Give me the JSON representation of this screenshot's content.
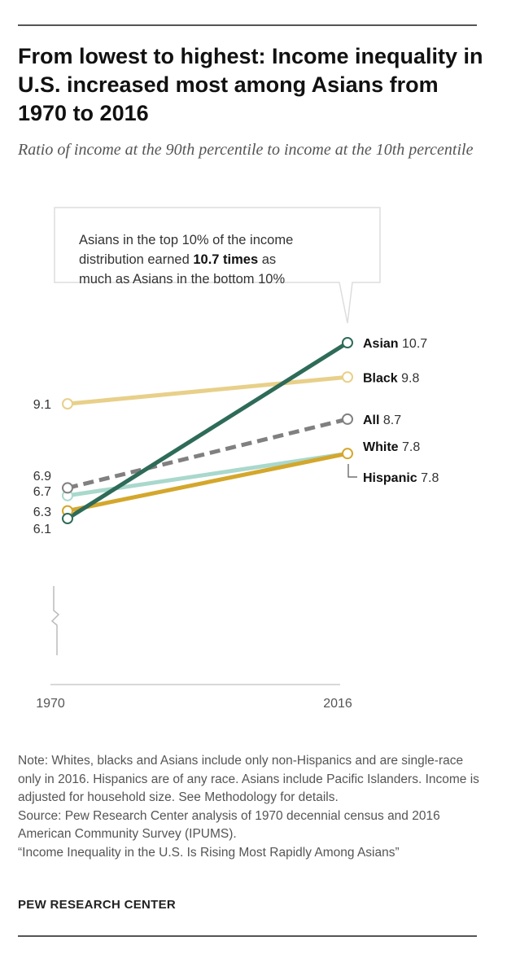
{
  "header": {
    "title": "From lowest to highest: Income inequality in U.S. increased most among Asians from 1970 to 2016",
    "subtitle": "Ratio of income at the 90th percentile to income at the 10th percentile"
  },
  "chart_data": {
    "type": "line",
    "x": [
      "1970",
      "2016"
    ],
    "ylabel": "Ratio of income at the 90th percentile to income at the 10th percentile",
    "xlabel": "",
    "ylim": [
      6.1,
      10.7
    ],
    "axis_break": true,
    "series": [
      {
        "name": "Black",
        "values": [
          9.1,
          9.8
        ],
        "color": "#e8d08a",
        "style": "solid",
        "label_start": "9.1",
        "label_end_value": "9.8"
      },
      {
        "name": "Hispanic",
        "values": [
          6.7,
          7.8
        ],
        "color": "#a9d8cc",
        "style": "solid",
        "label_start": "6.7",
        "label_end_value": "7.8"
      },
      {
        "name": "White",
        "values": [
          6.3,
          7.8
        ],
        "color": "#d4a72c",
        "style": "solid",
        "label_start": "6.3",
        "label_end_value": "7.8"
      },
      {
        "name": "All",
        "values": [
          6.9,
          8.7
        ],
        "color": "#808080",
        "style": "dashed",
        "label_start": "6.9",
        "label_end_value": "8.7"
      },
      {
        "name": "Asian",
        "values": [
          6.1,
          10.7
        ],
        "color": "#2e6b58",
        "style": "solid",
        "label_start": "6.1",
        "label_end_value": "10.7"
      }
    ],
    "annotation": {
      "before": "Asians in the top 10% of the income distribution earned ",
      "bold": "10.7 times",
      "after": " as much as Asians in the bottom 10%"
    }
  },
  "notes": {
    "note": "Note: Whites, blacks and Asians include only non-Hispanics and are single-race only in 2016. Hispanics are of any race. Asians include Pacific Islanders. Income is adjusted for household size. See Methodology for details.",
    "source": "Source: Pew Research Center analysis of 1970 decennial census and 2016 American Community Survey (IPUMS).",
    "report": "“Income Inequality in the U.S. Is Rising Most Rapidly Among Asians”"
  },
  "brand": "PEW RESEARCH CENTER"
}
